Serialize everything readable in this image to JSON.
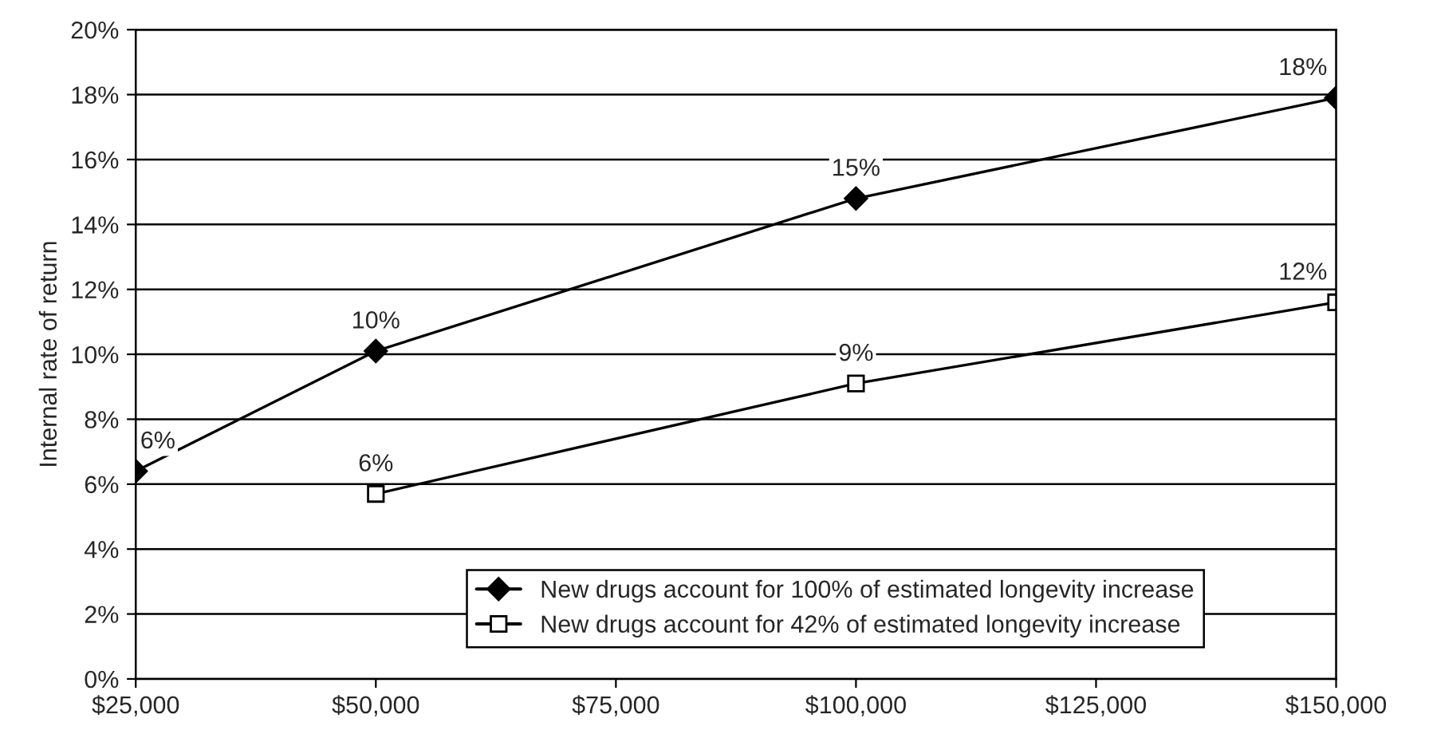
{
  "chart_data": {
    "type": "line",
    "ylabel": "Internal rate of return",
    "xlim": [
      25000,
      150000
    ],
    "xticks": [
      {
        "value": 25000,
        "label": "$25,000"
      },
      {
        "value": 50000,
        "label": "$50,000"
      },
      {
        "value": 75000,
        "label": "$75,000"
      },
      {
        "value": 100000,
        "label": "$100,000"
      },
      {
        "value": 125000,
        "label": "$125,000"
      },
      {
        "value": 150000,
        "label": "$150,000"
      }
    ],
    "ylim": [
      0,
      20
    ],
    "yticks": [
      {
        "value": 0,
        "label": "0%"
      },
      {
        "value": 2,
        "label": "2%"
      },
      {
        "value": 4,
        "label": "4%"
      },
      {
        "value": 6,
        "label": "6%"
      },
      {
        "value": 8,
        "label": "8%"
      },
      {
        "value": 10,
        "label": "10%"
      },
      {
        "value": 12,
        "label": "12%"
      },
      {
        "value": 14,
        "label": "14%"
      },
      {
        "value": 16,
        "label": "16%"
      },
      {
        "value": 18,
        "label": "18%"
      },
      {
        "value": 20,
        "label": "20%"
      }
    ],
    "grid": "y",
    "legend": "bottom right",
    "line_style": "solid",
    "series": [
      {
        "name": "New drugs account for 100% of estimated longevity increase",
        "color": "#000000",
        "marker": "diamond",
        "x": [
          25000,
          50000,
          100000,
          150000
        ],
        "values": [
          6.4,
          10.1,
          14.8,
          17.9
        ],
        "value_labels": [
          "6%",
          "10%",
          "15%",
          "18%"
        ]
      },
      {
        "name": "New drugs account for 42% of estimated longevity increase",
        "color": "#000000",
        "marker": "square",
        "x": [
          50000,
          100000,
          150000
        ],
        "values": [
          5.7,
          9.1,
          11.6
        ],
        "value_labels": [
          "6%",
          "9%",
          "12%"
        ]
      }
    ]
  }
}
